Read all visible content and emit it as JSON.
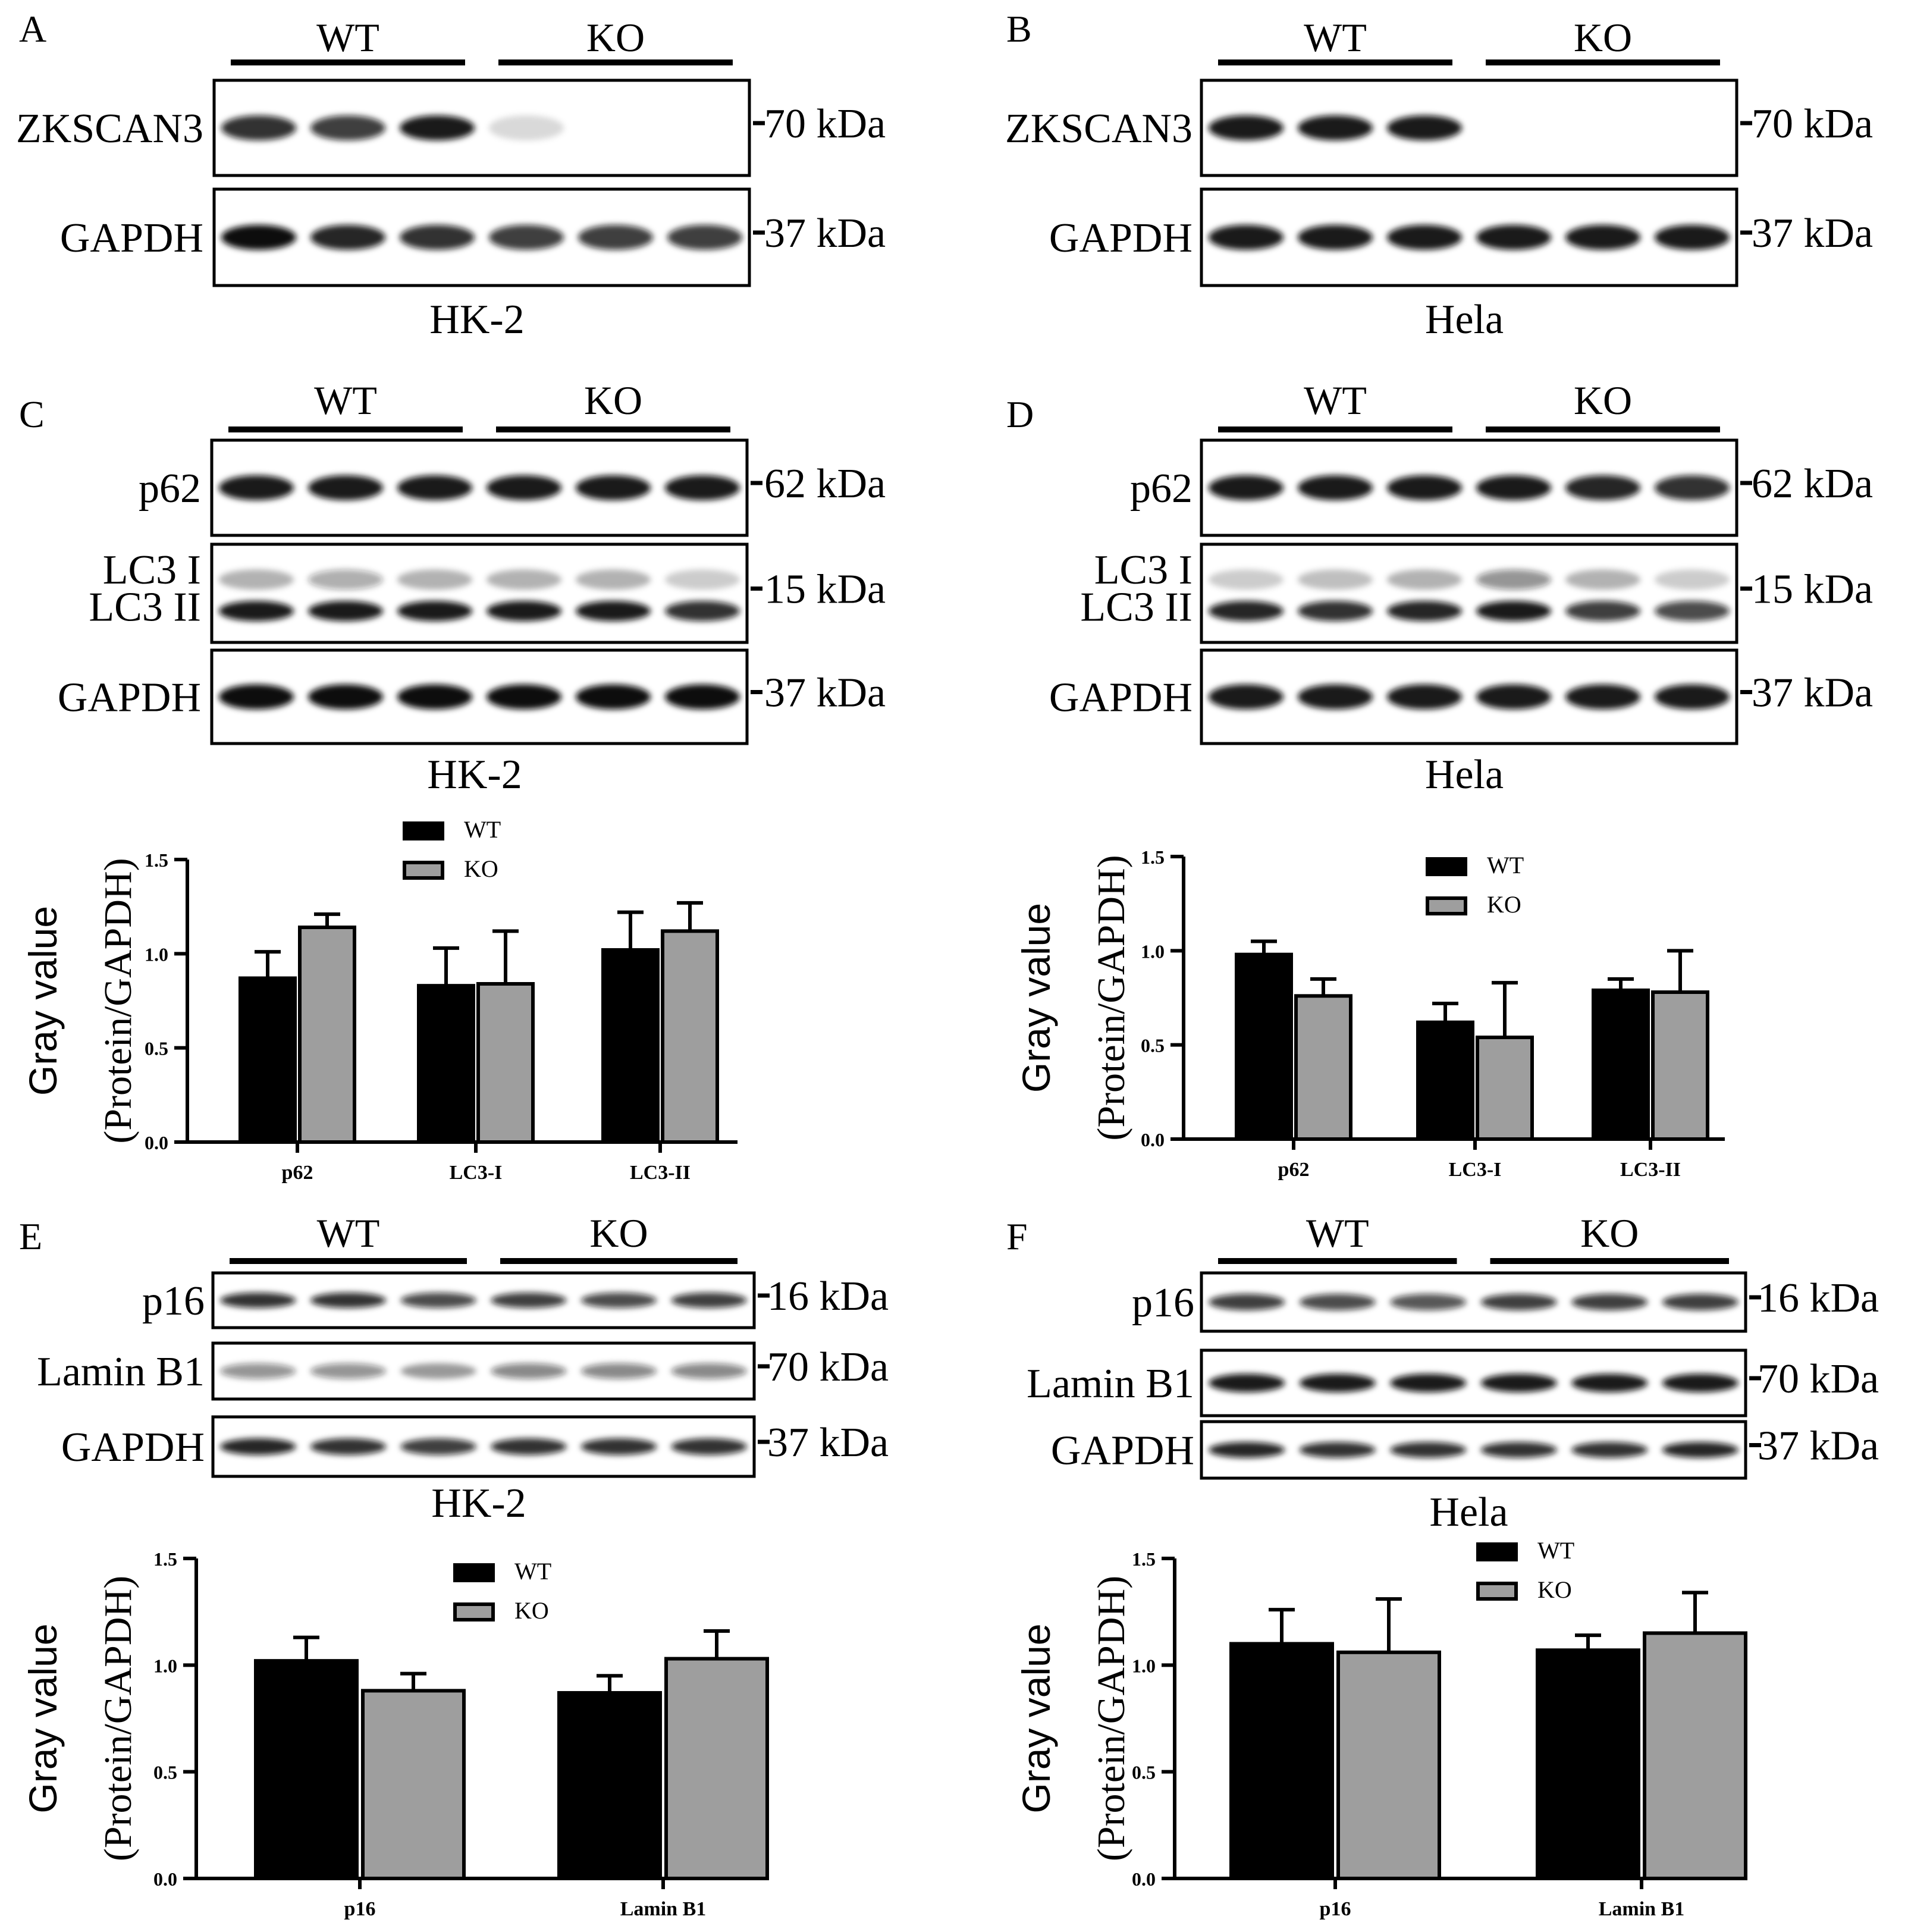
{
  "blot_panels": [
    {
      "letter": "A",
      "groups": [
        "WT",
        "KO"
      ],
      "cell_line": "HK-2",
      "rows": [
        {
          "labels": [
            "ZKSCAN3"
          ],
          "kda": "70 kDa",
          "bands": [
            [
              0.85,
              0.8,
              0.95,
              0.15,
              0,
              0
            ]
          ]
        },
        {
          "labels": [
            "GAPDH"
          ],
          "kda": "37 kDa",
          "bands": [
            [
              1,
              0.9,
              0.85,
              0.8,
              0.8,
              0.8
            ]
          ]
        }
      ]
    },
    {
      "letter": "B",
      "groups": [
        "WT",
        "KO"
      ],
      "cell_line": "Hela",
      "rows": [
        {
          "labels": [
            "ZKSCAN3"
          ],
          "kda": "70 kDa",
          "bands": [
            [
              0.95,
              0.95,
              0.95,
              0,
              0,
              0
            ]
          ]
        },
        {
          "labels": [
            "GAPDH"
          ],
          "kda": "37 kDa",
          "bands": [
            [
              0.95,
              0.95,
              0.95,
              0.95,
              0.95,
              0.95
            ]
          ]
        }
      ]
    },
    {
      "letter": "C",
      "groups": [
        "WT",
        "KO"
      ],
      "cell_line": "HK-2",
      "rows": [
        {
          "labels": [
            "p62"
          ],
          "kda": "62 kDa",
          "bands": [
            [
              0.95,
              0.95,
              0.95,
              0.95,
              0.95,
              0.95
            ]
          ]
        },
        {
          "labels": [
            "LC3 I",
            "LC3 II"
          ],
          "kda": "15 kDa",
          "bands": [
            [
              0.3,
              0.35,
              0.3,
              0.3,
              0.3,
              0.2
            ],
            [
              0.95,
              0.95,
              0.95,
              0.95,
              0.95,
              0.85
            ]
          ]
        },
        {
          "labels": [
            "GAPDH"
          ],
          "kda": "37 kDa",
          "bands": [
            [
              1,
              1,
              1,
              1,
              1,
              1
            ]
          ]
        }
      ]
    },
    {
      "letter": "D",
      "groups": [
        "WT",
        "KO"
      ],
      "cell_line": "Hela",
      "rows": [
        {
          "labels": [
            "p62"
          ],
          "kda": "62 kDa",
          "bands": [
            [
              0.95,
              0.95,
              0.95,
              0.95,
              0.9,
              0.85
            ]
          ]
        },
        {
          "labels": [
            "LC3 I",
            "LC3 II"
          ],
          "kda": "15 kDa",
          "bands": [
            [
              0.2,
              0.25,
              0.3,
              0.45,
              0.3,
              0.2
            ],
            [
              0.9,
              0.85,
              0.9,
              0.95,
              0.8,
              0.75
            ]
          ]
        },
        {
          "labels": [
            "GAPDH"
          ],
          "kda": "37 kDa",
          "bands": [
            [
              0.95,
              0.95,
              0.95,
              0.95,
              0.95,
              0.95
            ]
          ]
        }
      ]
    },
    {
      "letter": "E",
      "groups": [
        "WT",
        "KO"
      ],
      "cell_line": "HK-2",
      "rows": [
        {
          "labels": [
            "p16"
          ],
          "kda": "16 kDa",
          "bands": [
            [
              0.85,
              0.85,
              0.75,
              0.8,
              0.75,
              0.8
            ]
          ]
        },
        {
          "labels": [
            "Lamin B1"
          ],
          "kda": "70 kDa",
          "bands": [
            [
              0.45,
              0.45,
              0.4,
              0.5,
              0.5,
              0.5
            ]
          ]
        },
        {
          "labels": [
            "GAPDH"
          ],
          "kda": "37 kDa",
          "bands": [
            [
              0.9,
              0.85,
              0.8,
              0.85,
              0.85,
              0.85
            ]
          ]
        }
      ]
    },
    {
      "letter": "F",
      "groups": [
        "WT",
        "KO"
      ],
      "cell_line": "Hela",
      "rows": [
        {
          "labels": [
            "p16"
          ],
          "kda": "16 kDa",
          "bands": [
            [
              0.8,
              0.75,
              0.7,
              0.8,
              0.8,
              0.8
            ]
          ]
        },
        {
          "labels": [
            "Lamin B1"
          ],
          "kda": "70 kDa",
          "bands": [
            [
              0.95,
              0.95,
              0.95,
              0.95,
              0.95,
              0.95
            ]
          ]
        },
        {
          "labels": [
            "GAPDH"
          ],
          "kda": "37 kDa",
          "bands": [
            [
              0.9,
              0.85,
              0.85,
              0.85,
              0.85,
              0.9
            ]
          ]
        }
      ]
    }
  ],
  "colors": {
    "wt": "#000000",
    "ko": "#9e9e9e",
    "band": "#101010"
  },
  "chart_data": [
    {
      "type": "bar",
      "panel": "C",
      "title": "",
      "ylabel_lines": [
        "Gray value",
        "(Protein/GAPDH)"
      ],
      "categories": [
        "p62",
        "LC3-I",
        "LC3-II"
      ],
      "series": [
        {
          "name": "WT",
          "values": [
            0.87,
            0.83,
            1.02
          ],
          "errors": [
            0.14,
            0.2,
            0.2
          ]
        },
        {
          "name": "KO",
          "values": [
            1.14,
            0.84,
            1.12
          ],
          "errors": [
            0.07,
            0.28,
            0.15
          ]
        }
      ],
      "ylim": [
        0,
        1.5
      ],
      "yticks": [
        "0.0",
        "0.5",
        "1.0",
        "1.5"
      ],
      "legend": "top-center"
    },
    {
      "type": "bar",
      "panel": "D",
      "title": "",
      "ylabel_lines": [
        "Gray value",
        "(Protein/GAPDH)"
      ],
      "categories": [
        "p62",
        "LC3-I",
        "LC3-II"
      ],
      "series": [
        {
          "name": "WT",
          "values": [
            0.98,
            0.62,
            0.79
          ],
          "errors": [
            0.07,
            0.1,
            0.06
          ]
        },
        {
          "name": "KO",
          "values": [
            0.76,
            0.54,
            0.78
          ],
          "errors": [
            0.09,
            0.29,
            0.22
          ]
        }
      ],
      "ylim": [
        0,
        1.5
      ],
      "yticks": [
        "0.0",
        "0.5",
        "1.0",
        "1.5"
      ],
      "legend": "top-center"
    },
    {
      "type": "bar",
      "panel": "E",
      "title": "",
      "ylabel_lines": [
        "Gray value",
        "(Protein/GAPDH)"
      ],
      "categories": [
        "p16",
        "Lamin B1"
      ],
      "series": [
        {
          "name": "WT",
          "values": [
            1.02,
            0.87
          ],
          "errors": [
            0.11,
            0.08
          ]
        },
        {
          "name": "KO",
          "values": [
            0.88,
            1.03
          ],
          "errors": [
            0.08,
            0.13
          ]
        }
      ],
      "ylim": [
        0,
        1.5
      ],
      "yticks": [
        "0.0",
        "0.5",
        "1.0",
        "1.5"
      ],
      "legend": "top-center"
    },
    {
      "type": "bar",
      "panel": "F",
      "title": "",
      "ylabel_lines": [
        "Gray value",
        "(Protein/GAPDH)"
      ],
      "categories": [
        "p16",
        "Lamin B1"
      ],
      "series": [
        {
          "name": "WT",
          "values": [
            1.1,
            1.07
          ],
          "errors": [
            0.16,
            0.07
          ]
        },
        {
          "name": "KO",
          "values": [
            1.06,
            1.15
          ],
          "errors": [
            0.25,
            0.19
          ]
        }
      ],
      "ylim": [
        0,
        1.5
      ],
      "yticks": [
        "0.0",
        "0.5",
        "1.0",
        "1.5"
      ],
      "legend": "top-right"
    }
  ]
}
